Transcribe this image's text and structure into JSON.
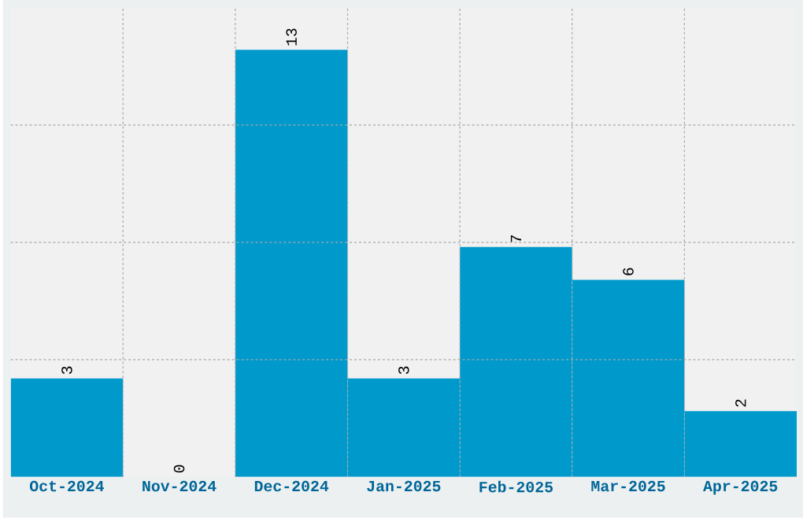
{
  "chart_data": {
    "type": "bar",
    "categories": [
      "Oct-2024",
      "Nov-2024",
      "Dec-2024",
      "Jan-2025",
      "Feb-2025",
      "Mar-2025",
      "Apr-2025"
    ],
    "values": [
      3,
      0,
      13,
      3,
      7,
      6,
      2
    ],
    "color": "#0099cc",
    "ylim": [
      0,
      14.28
    ],
    "yticks": [
      {
        "value": 3.57,
        "label": null
      },
      {
        "value": 7.14,
        "label": null
      },
      {
        "value": 10.71,
        "label": null
      }
    ],
    "grid": true,
    "data_labels": true,
    "tick_labels": "x"
  }
}
